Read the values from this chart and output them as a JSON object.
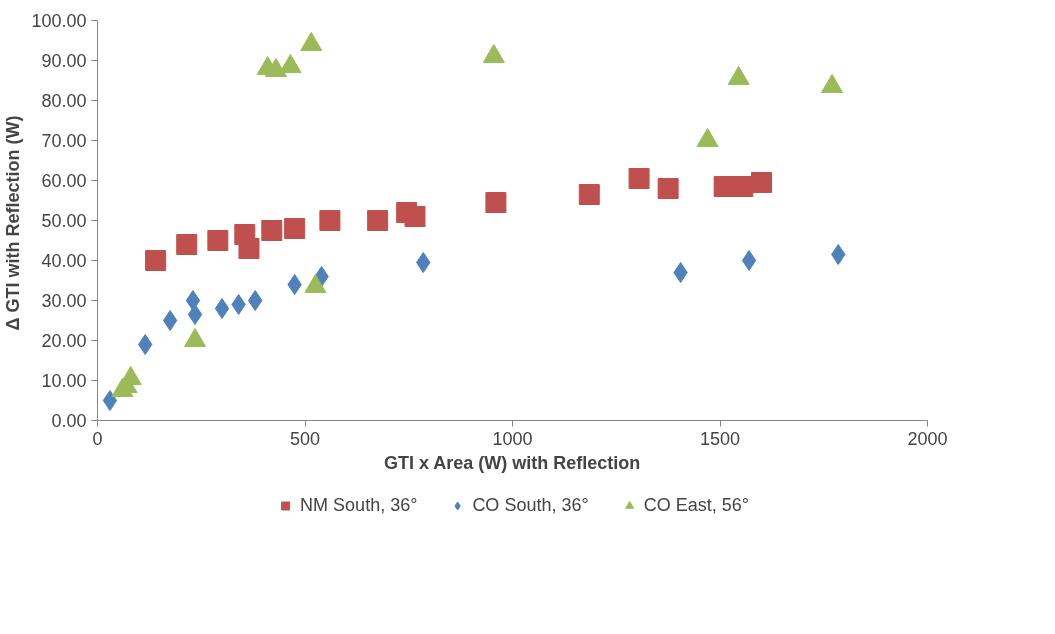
{
  "chart_data": {
    "type": "scatter",
    "xlabel": "GTI x Area (W) with Reflection",
    "ylabel": "Δ GTI with Reflection  (W)",
    "xlim": [
      0,
      2000
    ],
    "xticks": [
      0,
      500,
      1000,
      1500,
      2000
    ],
    "ylim": [
      0,
      100
    ],
    "yticks": [
      {
        "value": 0,
        "label": "0.00"
      },
      {
        "value": 10,
        "label": "10.00"
      },
      {
        "value": 20,
        "label": "20.00"
      },
      {
        "value": 30,
        "label": "30.00"
      },
      {
        "value": 40,
        "label": "40.00"
      },
      {
        "value": 50,
        "label": "50.00"
      },
      {
        "value": 60,
        "label": "60.00"
      },
      {
        "value": 70,
        "label": "70.00"
      },
      {
        "value": 80,
        "label": "80.00"
      },
      {
        "value": 90,
        "label": "90.00"
      },
      {
        "value": 100,
        "label": "100.00"
      }
    ],
    "grid": false,
    "legend": "bottom",
    "series": [
      {
        "name": "NM South, 36°",
        "color": "#c0504d",
        "marker": "square",
        "x": [
          140,
          215,
          290,
          355,
          365,
          420,
          475,
          560,
          675,
          745,
          765,
          960,
          1185,
          1305,
          1375,
          1510,
          1555,
          1600
        ],
        "values": [
          40,
          44,
          45,
          46.5,
          43,
          47.5,
          48,
          50,
          50,
          52,
          51,
          54.5,
          56.5,
          60.5,
          58,
          58.5,
          58.5,
          59.5
        ]
      },
      {
        "name": "CO South, 36°",
        "color": "#4f81bd",
        "marker": "diamond",
        "x": [
          30,
          115,
          175,
          230,
          235,
          300,
          340,
          380,
          475,
          540,
          785,
          1405,
          1570,
          1785
        ],
        "values": [
          5,
          19,
          25,
          30,
          26.5,
          28,
          29,
          30,
          34,
          36,
          39.5,
          37,
          40,
          41.5
        ]
      },
      {
        "name": "CO East, 56°",
        "color": "#9bbb59",
        "marker": "triangle",
        "x": [
          60,
          70,
          80,
          235,
          410,
          430,
          465,
          515,
          525,
          955,
          1470,
          1545,
          1770
        ],
        "values": [
          7.5,
          8.5,
          10.5,
          20,
          88,
          87.5,
          88.5,
          94,
          33.5,
          91,
          70,
          85.5,
          83.5
        ]
      }
    ]
  }
}
